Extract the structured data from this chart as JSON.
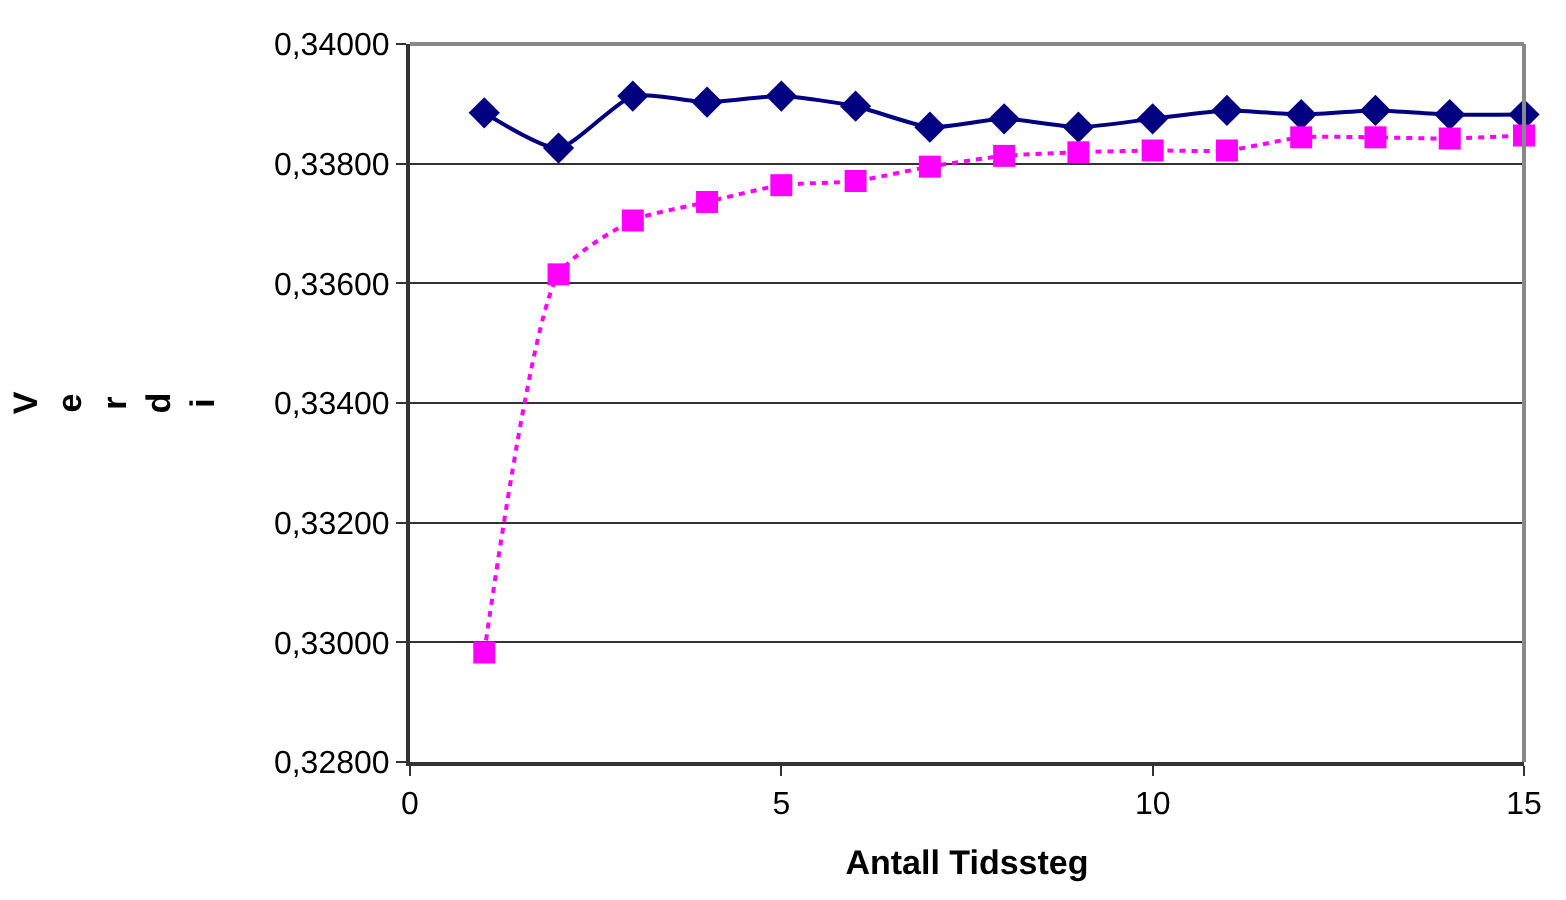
{
  "chart_data": {
    "type": "line",
    "xlabel": "Antall Tidssteg",
    "ylabel": "Verdi",
    "x": [
      1,
      2,
      3,
      4,
      5,
      6,
      7,
      8,
      9,
      10,
      11,
      12,
      13,
      14,
      15
    ],
    "series": [
      {
        "color": "#000080",
        "marker": "diamond",
        "line_style": "solid",
        "values": [
          0.33885,
          0.33826,
          0.33913,
          0.33903,
          0.33913,
          0.33896,
          0.33861,
          0.33875,
          0.33861,
          0.33875,
          0.33889,
          0.33882,
          0.33889,
          0.33882,
          0.33882
        ]
      },
      {
        "color": "#ff00ff",
        "marker": "square",
        "line_style": "dotted",
        "values": [
          0.32983,
          0.33615,
          0.33705,
          0.33736,
          0.33764,
          0.33771,
          0.33795,
          0.33813,
          0.33819,
          0.33822,
          0.33822,
          0.33844,
          0.33844,
          0.33842,
          0.33847
        ]
      }
    ],
    "xlim": [
      0,
      15
    ],
    "xticks": [
      0,
      5,
      10,
      15
    ],
    "ylim": [
      0.328,
      0.34
    ],
    "yticks": [
      {
        "value": 0.328,
        "label": "0,32800"
      },
      {
        "value": 0.33,
        "label": "0,33000"
      },
      {
        "value": 0.332,
        "label": "0,33200"
      },
      {
        "value": 0.334,
        "label": "0,33400"
      },
      {
        "value": 0.336,
        "label": "0,33600"
      },
      {
        "value": 0.338,
        "label": "0,33800"
      },
      {
        "value": 0.34,
        "label": "0,34000"
      }
    ],
    "grid": "y",
    "legend": false
  }
}
